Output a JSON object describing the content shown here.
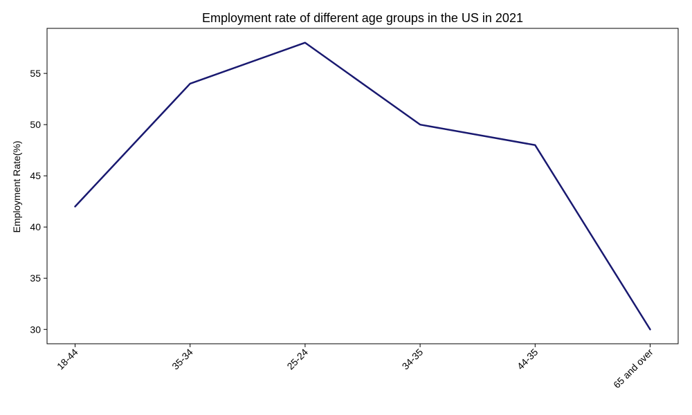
{
  "chart_data": {
    "type": "line",
    "title": "Employment rate of different age groups in the US in 2021",
    "xlabel": "",
    "ylabel": "Employment Rate(%)",
    "categories": [
      "18-44",
      "35-34",
      "25-24",
      "34-35",
      "44-35",
      "65 and over"
    ],
    "series": [
      {
        "values": [
          42,
          54,
          58,
          50,
          48,
          30
        ],
        "color": "#191970"
      }
    ],
    "yticks": [
      30,
      35,
      40,
      45,
      50,
      55
    ],
    "ylim": [
      28.6,
      59.4
    ],
    "grid": false,
    "legend": "none"
  }
}
